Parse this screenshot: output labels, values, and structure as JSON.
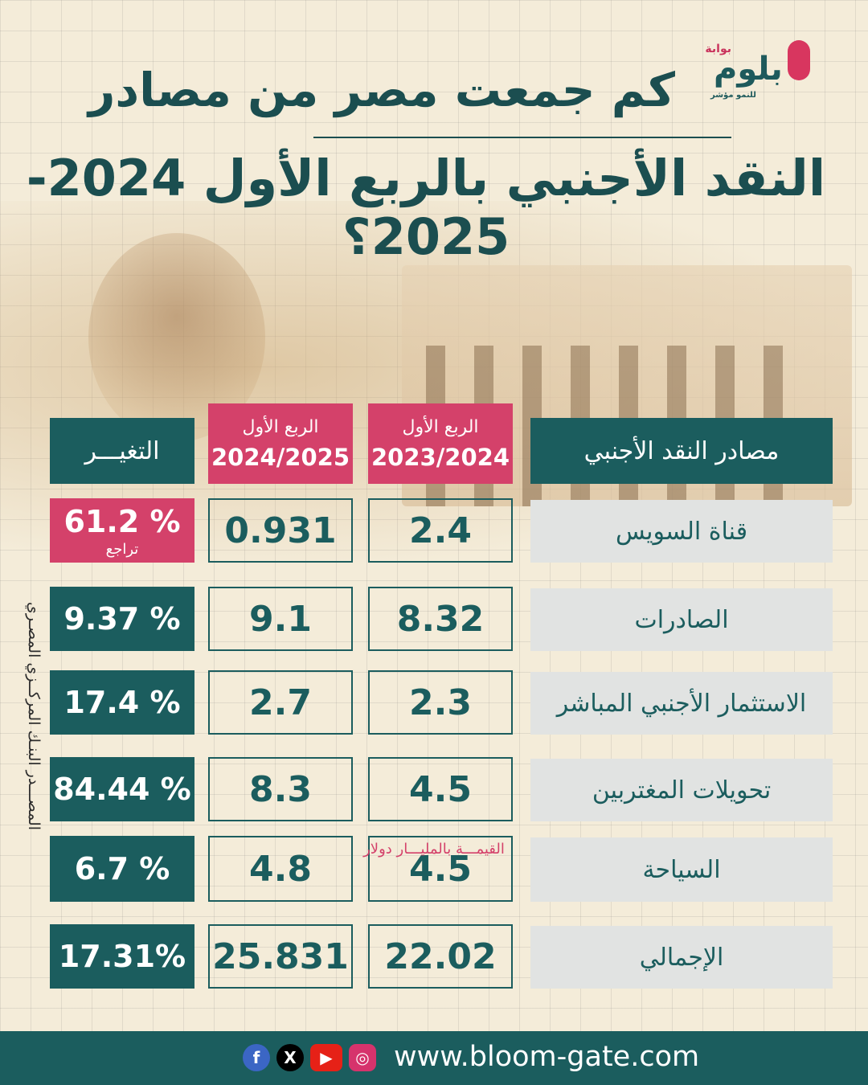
{
  "brand": {
    "small": "بوابة",
    "name": "بلوم",
    "tagline": "للنمو مؤشر"
  },
  "title": {
    "line1": "كم جمعت مصر من مصادر",
    "line2": "النقد الأجنبي بالربع الأول 2024-2025؟"
  },
  "table": {
    "col_source": "مصادر النقد الأجنبي",
    "col_q1_prev": {
      "quarter": "الربع الأول",
      "year": "2023/2024"
    },
    "col_q1_curr": {
      "quarter": "الربع الأول",
      "year": "2024/2025"
    },
    "col_change": "التغيـــر",
    "rows": [
      {
        "label": "قناة السويس",
        "prev": "2.4",
        "curr": "0.931",
        "change": "61.2 %",
        "change_note": "تراجع",
        "negative": true
      },
      {
        "label": "الصادرات",
        "prev": "8.32",
        "curr": "9.1",
        "change": "9.37 %"
      },
      {
        "label": "الاستثمار الأجنبي المباشر",
        "prev": "2.3",
        "curr": "2.7",
        "change": "17.4 %"
      },
      {
        "label": "تحويلات المغتربين",
        "prev": "4.5",
        "curr": "8.3",
        "change": "84.44 %"
      },
      {
        "label": "السياحة",
        "prev": "4.5",
        "curr": "4.8",
        "change": "6.7 %"
      },
      {
        "label": "الإجمالي",
        "prev": "22.02",
        "curr": "25.831",
        "change": "17.31%"
      }
    ]
  },
  "source": "المصـــدر البنـك المركــزي المصـري",
  "unit_note": "القيمـــة بالمليـــار دولار",
  "footer": {
    "url": "www.bloom-gate.com",
    "icons": [
      "facebook-icon",
      "x-icon",
      "youtube-icon",
      "instagram-icon"
    ]
  },
  "colors": {
    "teal": "#1b5d5e",
    "pink": "#d4416a",
    "label_bg": "#e1e3e2",
    "page_bg": "#f4ecd9"
  }
}
